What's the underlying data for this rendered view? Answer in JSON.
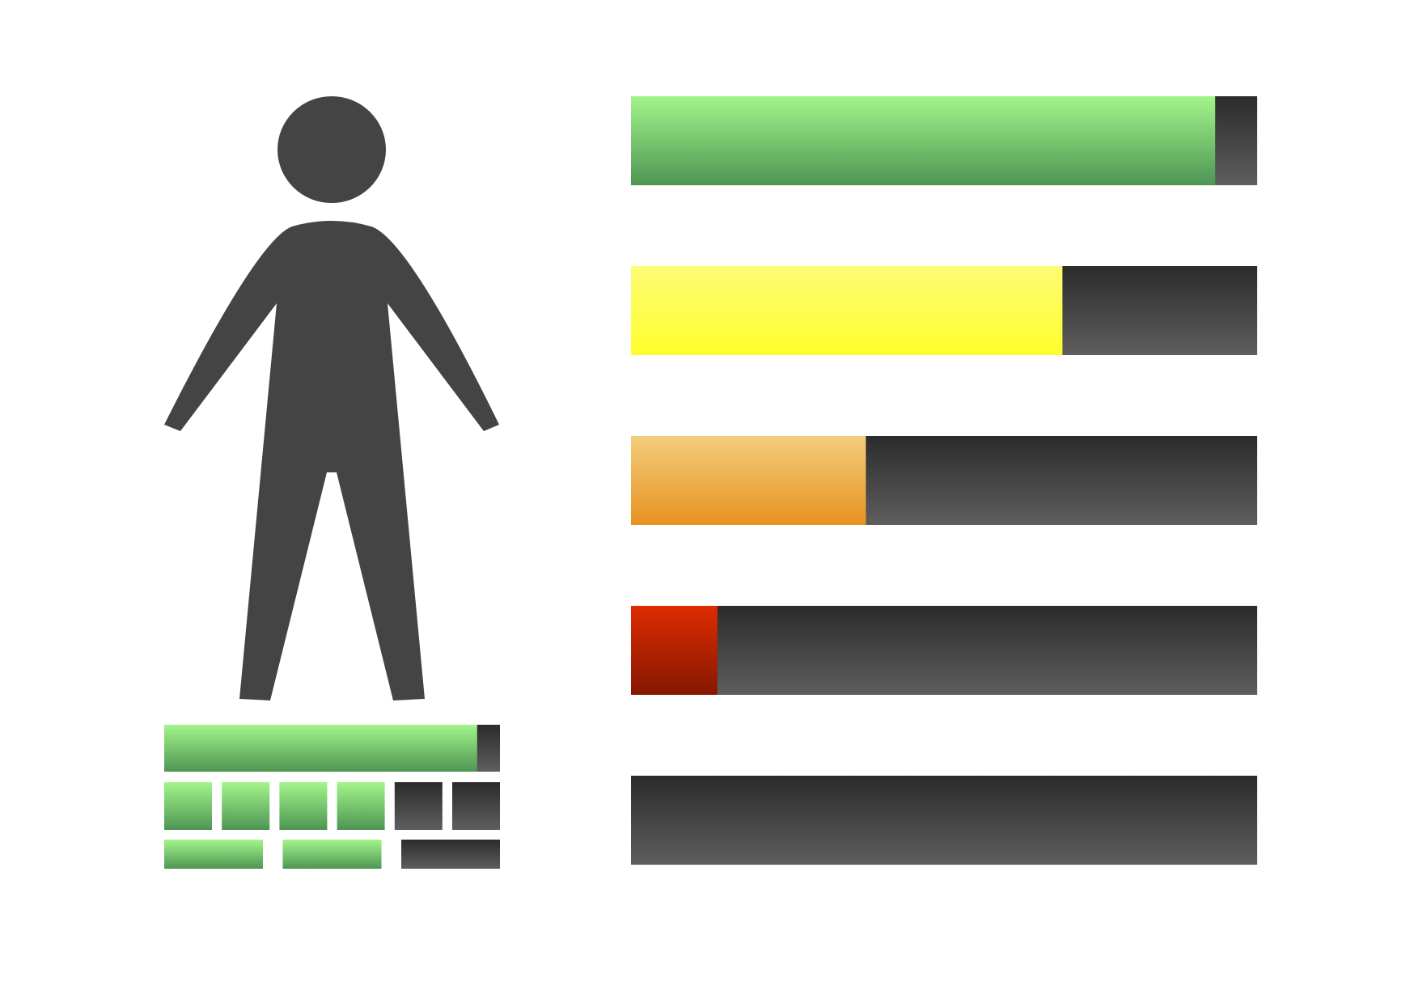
{
  "figure": {
    "icon": "person-silhouette-icon",
    "colors": {
      "figure": "#444444",
      "track_top": "#2b2b2b",
      "track_bottom": "#5e5e5e",
      "green_top": "#a3f58a",
      "green_bottom": "#4e9554",
      "yellow_top": "#fdfc75",
      "yellow_bottom": "#fefe2c",
      "orange_top": "#f2cd7c",
      "orange_bottom": "#e89220",
      "red_top": "#df2c00",
      "red_bottom": "#851800"
    }
  },
  "levels": [
    {
      "name": "level-1",
      "fill_fraction": 0.933,
      "color": "green"
    },
    {
      "name": "level-2",
      "fill_fraction": 0.689,
      "color": "yellow"
    },
    {
      "name": "level-3",
      "fill_fraction": 0.375,
      "color": "orange"
    },
    {
      "name": "level-4",
      "fill_fraction": 0.138,
      "color": "red"
    },
    {
      "name": "level-5",
      "fill_fraction": 0.0,
      "color": "none"
    }
  ],
  "base_meter": {
    "bar_fill_fraction": 0.932,
    "segment_row_1": {
      "total": 6,
      "filled": 4
    },
    "segment_row_2": {
      "total": 3,
      "filled": 2
    }
  }
}
